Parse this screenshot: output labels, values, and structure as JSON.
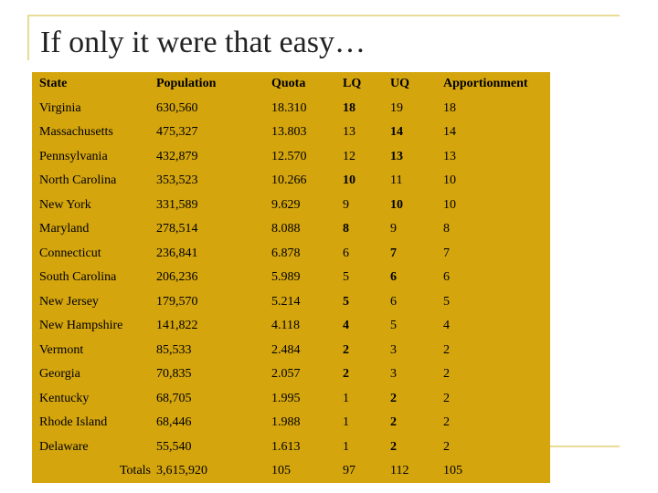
{
  "slide": {
    "title": "If only it were that easy…"
  },
  "table": {
    "headers": [
      "State",
      "Population",
      "Quota",
      "LQ",
      "UQ",
      "Apportionment"
    ],
    "rows": [
      {
        "state": "Virginia",
        "population": "630,560",
        "quota": "18.310",
        "lq": "18",
        "uq": "19",
        "apportionment": "18",
        "bold": "lq"
      },
      {
        "state": "Massachusetts",
        "population": "475,327",
        "quota": "13.803",
        "lq": "13",
        "uq": "14",
        "apportionment": "14",
        "bold": "uq"
      },
      {
        "state": "Pennsylvania",
        "population": "432,879",
        "quota": "12.570",
        "lq": "12",
        "uq": "13",
        "apportionment": "13",
        "bold": "uq"
      },
      {
        "state": "North Carolina",
        "population": "353,523",
        "quota": "10.266",
        "lq": "10",
        "uq": "11",
        "apportionment": "10",
        "bold": "lq"
      },
      {
        "state": "New York",
        "population": "331,589",
        "quota": "9.629",
        "lq": "9",
        "uq": "10",
        "apportionment": "10",
        "bold": "uq"
      },
      {
        "state": "Maryland",
        "population": "278,514",
        "quota": "8.088",
        "lq": "8",
        "uq": "9",
        "apportionment": "8",
        "bold": "lq"
      },
      {
        "state": "Connecticut",
        "population": "236,841",
        "quota": "6.878",
        "lq": "6",
        "uq": "7",
        "apportionment": "7",
        "bold": "uq"
      },
      {
        "state": "South Carolina",
        "population": "206,236",
        "quota": "5.989",
        "lq": "5",
        "uq": "6",
        "apportionment": "6",
        "bold": "uq"
      },
      {
        "state": "New Jersey",
        "population": "179,570",
        "quota": "5.214",
        "lq": "5",
        "uq": "6",
        "apportionment": "5",
        "bold": "lq"
      },
      {
        "state": "New Hampshire",
        "population": "141,822",
        "quota": "4.118",
        "lq": "4",
        "uq": "5",
        "apportionment": "4",
        "bold": "lq"
      },
      {
        "state": "Vermont",
        "population": "85,533",
        "quota": "2.484",
        "lq": "2",
        "uq": "3",
        "apportionment": "2",
        "bold": "lq"
      },
      {
        "state": "Georgia",
        "population": "70,835",
        "quota": "2.057",
        "lq": "2",
        "uq": "3",
        "apportionment": "2",
        "bold": "lq"
      },
      {
        "state": "Kentucky",
        "population": "68,705",
        "quota": "1.995",
        "lq": "1",
        "uq": "2",
        "apportionment": "2",
        "bold": "uq"
      },
      {
        "state": "Rhode Island",
        "population": "68,446",
        "quota": "1.988",
        "lq": "1",
        "uq": "2",
        "apportionment": "2",
        "bold": "uq"
      },
      {
        "state": "Delaware",
        "population": "55,540",
        "quota": "1.613",
        "lq": "1",
        "uq": "2",
        "apportionment": "2",
        "bold": "uq"
      }
    ],
    "totals": {
      "label": "Totals",
      "population": "3,615,920",
      "quota": "105",
      "lq": "97",
      "uq": "112",
      "apportionment": "105"
    }
  },
  "colors": {
    "table_background": "#d4a50d",
    "frame_line": "#e8dc96"
  }
}
